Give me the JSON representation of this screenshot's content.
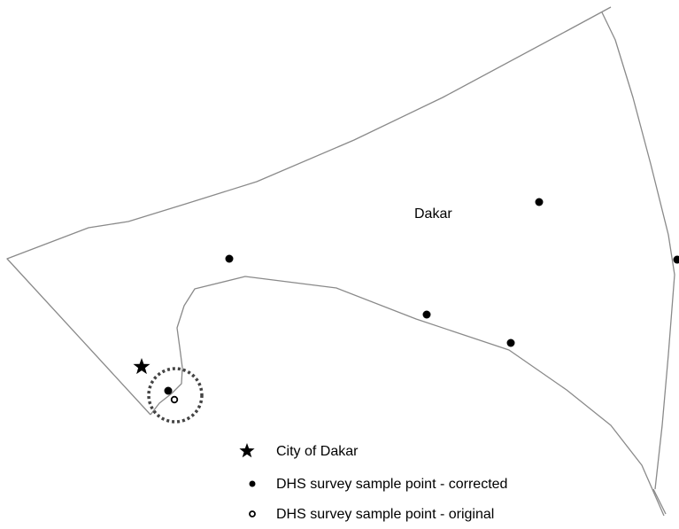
{
  "map": {
    "region_label": "Dakar",
    "colors": {
      "boundary": "#8a8a8a",
      "point": "#000000",
      "buffer": "#444444"
    }
  },
  "legend": {
    "items": [
      {
        "symbol": "star-icon",
        "label": "City of Dakar"
      },
      {
        "symbol": "filled-dot-icon",
        "label": "DHS survey sample point - corrected"
      },
      {
        "symbol": "open-dot-icon",
        "label": "DHS survey sample point - original"
      }
    ]
  }
}
